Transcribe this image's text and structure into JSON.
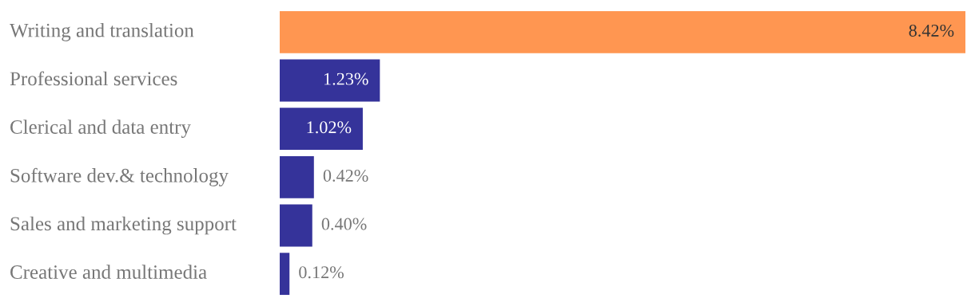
{
  "chart_data": {
    "type": "bar",
    "orientation": "horizontal",
    "categories": [
      "Writing and translation",
      "Professional services",
      "Clerical and data entry",
      "Software dev.& technology",
      "Sales and marketing support",
      "Creative and multimedia"
    ],
    "values": [
      8.42,
      1.23,
      1.02,
      0.42,
      0.4,
      0.12
    ],
    "value_labels": [
      "8.42%",
      "1.23%",
      "1.02%",
      "0.42%",
      "0.40%",
      "0.12%"
    ],
    "colors": [
      "#ff9651",
      "#35339a",
      "#35339a",
      "#35339a",
      "#35339a",
      "#35339a"
    ],
    "tick_labels": "y"
  }
}
